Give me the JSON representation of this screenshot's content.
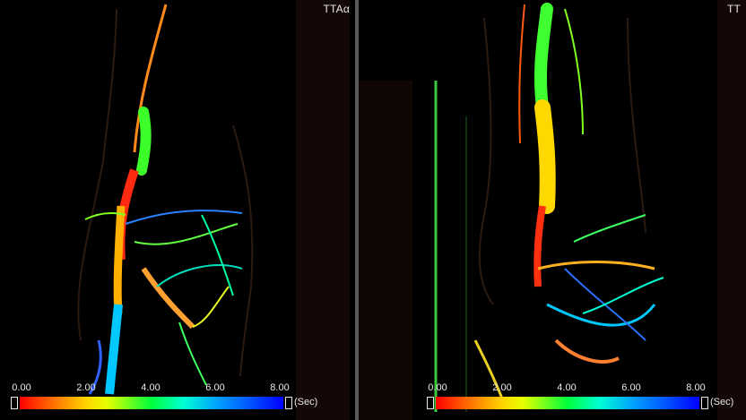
{
  "panels": [
    {
      "label": "TTAα",
      "colorbar": {
        "ticks": [
          "0.00",
          "2.00",
          "4.00",
          "6.00",
          "8.00"
        ],
        "unit": "(Sec)"
      }
    },
    {
      "label": "TT",
      "colorbar": {
        "ticks": [
          "0.00",
          "2.00",
          "4.00",
          "6.00",
          "8.00"
        ],
        "unit": "(Sec)"
      }
    }
  ],
  "colors": {
    "divider": "#5a5a5a",
    "scale": [
      "#ff0000",
      "#ffd200",
      "#00ff3c",
      "#00ffd2",
      "#0000ff"
    ]
  }
}
